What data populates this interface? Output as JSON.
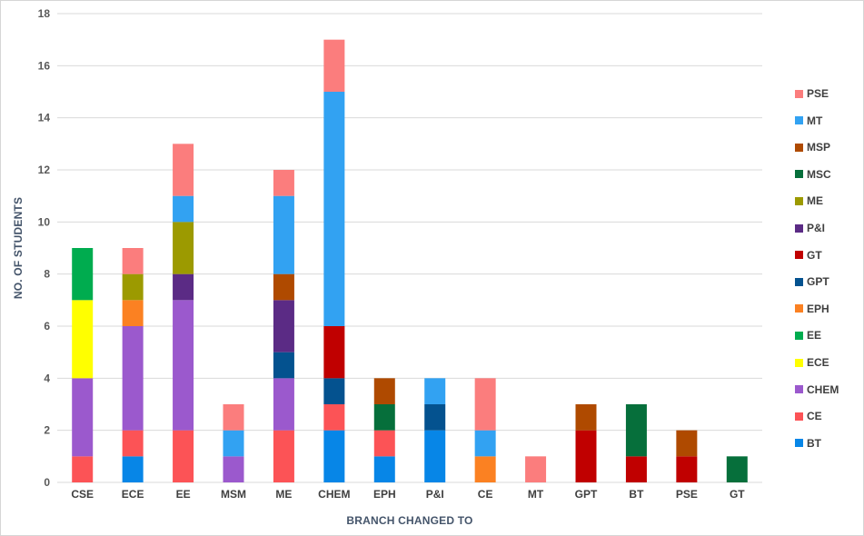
{
  "chart_data": {
    "type": "bar",
    "stacked": true,
    "title": "",
    "xlabel": "BRANCH CHANGED TO",
    "ylabel": "NO. OF STUDENTS",
    "categories": [
      "CSE",
      "ECE",
      "EE",
      "MSM",
      "ME",
      "CHEM",
      "EPH",
      "P&I",
      "CE",
      "MT",
      "GPT",
      "BT",
      "PSE",
      "GT"
    ],
    "series": [
      {
        "name": "BT",
        "color": "#0786E7",
        "values": [
          0,
          1,
          0,
          0,
          0,
          2,
          1,
          2,
          0,
          0,
          0,
          0,
          0,
          0
        ]
      },
      {
        "name": "CE",
        "color": "#FC5356",
        "values": [
          1,
          1,
          2,
          0,
          2,
          1,
          1,
          0,
          0,
          0,
          0,
          0,
          0,
          0
        ]
      },
      {
        "name": "CHEM",
        "color": "#9B59CD",
        "values": [
          3,
          4,
          5,
          1,
          2,
          0,
          0,
          0,
          0,
          0,
          0,
          0,
          0,
          0
        ]
      },
      {
        "name": "ECE",
        "color": "#FFFF00",
        "values": [
          3,
          0,
          0,
          0,
          0,
          0,
          0,
          0,
          0,
          0,
          0,
          0,
          0,
          0
        ]
      },
      {
        "name": "EE",
        "color": "#00AC4F",
        "values": [
          2,
          0,
          0,
          0,
          0,
          0,
          0,
          0,
          0,
          0,
          0,
          0,
          0,
          0
        ]
      },
      {
        "name": "EPH",
        "color": "#FB8122",
        "values": [
          0,
          1,
          0,
          0,
          0,
          0,
          0,
          0,
          1,
          0,
          0,
          0,
          0,
          0
        ]
      },
      {
        "name": "GPT",
        "color": "#04528F",
        "values": [
          0,
          0,
          0,
          0,
          1,
          1,
          0,
          1,
          0,
          0,
          0,
          0,
          0,
          0
        ]
      },
      {
        "name": "GT",
        "color": "#C00000",
        "values": [
          0,
          0,
          0,
          0,
          0,
          2,
          0,
          0,
          0,
          0,
          2,
          1,
          1,
          0
        ]
      },
      {
        "name": "P&I",
        "color": "#5B2B85",
        "values": [
          0,
          0,
          1,
          0,
          2,
          0,
          0,
          0,
          0,
          0,
          0,
          0,
          0,
          0
        ]
      },
      {
        "name": "ME",
        "color": "#9C9A00",
        "values": [
          0,
          1,
          2,
          0,
          0,
          0,
          0,
          0,
          0,
          0,
          0,
          0,
          0,
          0
        ]
      },
      {
        "name": "MSC",
        "color": "#066F3B",
        "values": [
          0,
          0,
          0,
          0,
          0,
          0,
          1,
          0,
          0,
          0,
          0,
          2,
          0,
          1
        ]
      },
      {
        "name": "MSP",
        "color": "#AF4A00",
        "values": [
          0,
          0,
          0,
          0,
          1,
          0,
          1,
          0,
          0,
          0,
          1,
          0,
          1,
          0
        ]
      },
      {
        "name": "MT",
        "color": "#32A2F2",
        "values": [
          0,
          0,
          1,
          1,
          3,
          9,
          0,
          1,
          1,
          0,
          0,
          0,
          0,
          0
        ]
      },
      {
        "name": "PSE",
        "color": "#FB7D7D",
        "values": [
          0,
          1,
          2,
          1,
          1,
          2,
          0,
          0,
          2,
          1,
          0,
          0,
          0,
          0
        ]
      }
    ],
    "totals": [
      9,
      9,
      13,
      3,
      12,
      17,
      4,
      4,
      4,
      1,
      3,
      3,
      2,
      1
    ],
    "ylim": [
      0,
      18
    ],
    "ytick_step": 2,
    "yticks": [
      0,
      2,
      4,
      6,
      8,
      10,
      12,
      14,
      16,
      18
    ],
    "grid": true,
    "legend_position": "right",
    "legend_order_top_to_bottom": [
      "PSE",
      "MT",
      "MSP",
      "MSC",
      "ME",
      "P&I",
      "GT",
      "GPT",
      "EPH",
      "EE",
      "ECE",
      "CHEM",
      "CE",
      "BT"
    ],
    "colors": {
      "grid": "#D9D9D9",
      "axis_line": "#D9D9D9",
      "tick_label": "#595959",
      "category_label": "#3F3F3F",
      "legend_label": "#3F3F3F",
      "axis_title": "#44546A",
      "frame_border": "#D6D6D6",
      "background": "#FFFFFF"
    }
  }
}
